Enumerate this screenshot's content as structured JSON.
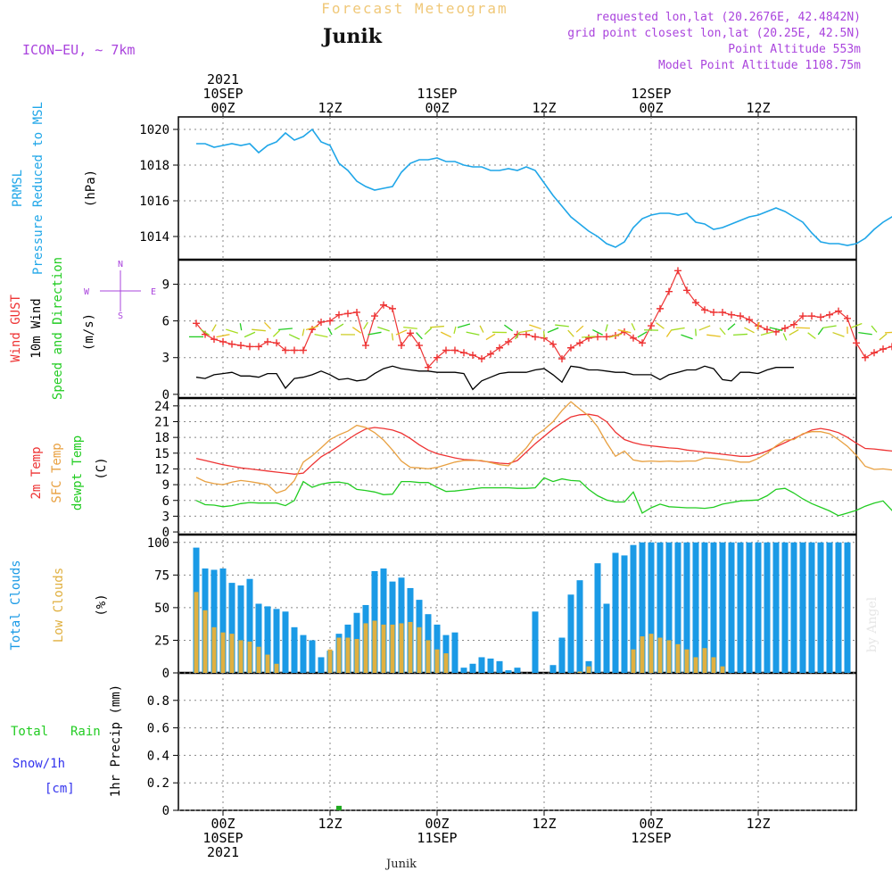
{
  "header": {
    "title": "Forecast Meteogram",
    "location": "Junik",
    "model": "ICON−EU,  ∼ 7km",
    "requested": "requested lon,lat (20.2676E, 42.4842N)",
    "gridpoint": "grid point closest lon,lat (20.25E, 42.5N)",
    "point_alt": "Point Altitude 553m",
    "model_alt": "Model Point Altitude 1108.75m",
    "watermark": "by Angel",
    "footer_location": "Junik"
  },
  "time_axis": {
    "top_labels": [
      {
        "h": 0,
        "lines": [
          "2021",
          "10SEP",
          "00Z"
        ]
      },
      {
        "h": 12,
        "lines": [
          "12Z"
        ]
      },
      {
        "h": 24,
        "lines": [
          "11SEP",
          "00Z"
        ]
      },
      {
        "h": 36,
        "lines": [
          "12Z"
        ]
      },
      {
        "h": 48,
        "lines": [
          "12SEP",
          "00Z"
        ]
      },
      {
        "h": 60,
        "lines": [
          "12Z"
        ]
      }
    ],
    "bottom_labels": [
      {
        "h": 0,
        "lines": [
          "00Z",
          "10SEP",
          "2021"
        ]
      },
      {
        "h": 12,
        "lines": [
          "12Z"
        ]
      },
      {
        "h": 24,
        "lines": [
          "00Z",
          "11SEP"
        ]
      },
      {
        "h": 36,
        "lines": [
          "12Z"
        ]
      },
      {
        "h": 48,
        "lines": [
          "00Z",
          "12SEP"
        ]
      },
      {
        "h": 60,
        "lines": [
          "12Z"
        ]
      }
    ]
  },
  "panel_labels": {
    "pressure": {
      "l1": "PRMSL",
      "l2": "Pressure Reduced to MSL",
      "unit": "(hPa)"
    },
    "wind": {
      "l1": "Wind GUST",
      "l2": "10m Wind",
      "l3": "Speed and Direction",
      "unit": "(m/s)",
      "rose_n": "N",
      "rose_s": "S",
      "rose_w": "W",
      "rose_e": "E"
    },
    "temp": {
      "l1": "2m Temp",
      "l2": "SFC Temp",
      "l3": "dewpt Temp",
      "unit": "(C)"
    },
    "clouds": {
      "l1": "Total Clouds",
      "l2": "Low Clouds",
      "unit": "(%)"
    },
    "precip": {
      "l1": "Total",
      "l1b": "Rain",
      "l2": "Snow/1h",
      "l3": "[cm]",
      "unit": "1hr Precip (mm)"
    }
  },
  "colors": {
    "pressure": "#1fa6e8",
    "gust": "#ee3333",
    "wind": "#000000",
    "temp2m": "#ee3333",
    "sfc": "#e8a040",
    "dewpt": "#22cc22",
    "total_clouds": "#1a9ae6",
    "low_clouds": "#e0b040",
    "rain": "#22aa22",
    "snow": "#3333ee",
    "title": "#f0c878",
    "meta": "#aa44dd"
  },
  "chart_data": [
    {
      "type": "line",
      "title": "PRMSL Pressure Reduced to MSL",
      "ylabel": "(hPa)",
      "ylim": [
        1012.7,
        1020.7
      ],
      "yticks": [
        1014,
        1016,
        1018,
        1020
      ],
      "x_hours_start": -3,
      "x_step_hours": 1,
      "series": [
        {
          "name": "PRMSL",
          "values": [
            1019.2,
            1019.2,
            1019.0,
            1019.1,
            1019.2,
            1019.1,
            1019.2,
            1018.7,
            1019.1,
            1019.3,
            1019.8,
            1019.4,
            1019.6,
            1020.0,
            1019.3,
            1019.1,
            1018.1,
            1017.7,
            1017.1,
            1016.8,
            1016.6,
            1016.7,
            1016.8,
            1017.6,
            1018.1,
            1018.3,
            1018.3,
            1018.4,
            1018.2,
            1018.2,
            1018.0,
            1017.9,
            1017.9,
            1017.7,
            1017.7,
            1017.8,
            1017.7,
            1017.9,
            1017.7,
            1017.0,
            1016.3,
            1015.7,
            1015.1,
            1014.7,
            1014.3,
            1014.0,
            1013.6,
            1013.4,
            1013.7,
            1014.5,
            1015.0,
            1015.2,
            1015.3,
            1015.3,
            1015.2,
            1015.3,
            1014.8,
            1014.7,
            1014.4,
            1014.5,
            1014.7,
            1014.9,
            1015.1,
            1015.2,
            1015.4,
            1015.6,
            1015.4,
            1015.1,
            1014.8,
            1014.2,
            1013.7,
            1013.6,
            1013.6,
            1013.5,
            1013.6,
            1013.9,
            1014.4,
            1014.8,
            1015.1,
            1015.3,
            1015.3,
            1015.2
          ]
        }
      ]
    },
    {
      "type": "line",
      "title": "Wind GUST / 10m Wind Speed and Direction",
      "ylabel": "(m/s)",
      "ylim": [
        -0.3,
        11
      ],
      "yticks": [
        0,
        3,
        6,
        9
      ],
      "x_hours_start": -3,
      "x_step_hours": 1,
      "series": [
        {
          "name": "Wind GUST",
          "values": [
            5.8,
            4.9,
            4.5,
            4.3,
            4.1,
            4.0,
            3.9,
            3.9,
            4.3,
            4.2,
            3.6,
            3.6,
            3.6,
            5.3,
            5.9,
            6.0,
            6.5,
            6.6,
            6.7,
            4.0,
            6.4,
            7.3,
            7.0,
            4.0,
            5.0,
            4.0,
            2.2,
            3.0,
            3.6,
            3.6,
            3.4,
            3.2,
            2.9,
            3.3,
            3.8,
            4.3,
            4.9,
            4.9,
            4.7,
            4.6,
            4.1,
            2.9,
            3.8,
            4.2,
            4.6,
            4.7,
            4.7,
            4.8,
            5.1,
            4.6,
            4.2,
            5.6,
            7.0,
            8.4,
            10.1,
            8.5,
            7.5,
            6.9,
            6.7,
            6.7,
            6.5,
            6.4,
            6.1,
            5.6,
            5.3,
            5.1,
            5.4,
            5.7,
            6.4,
            6.4,
            6.3,
            6.5,
            6.8,
            6.2,
            4.2,
            3.0,
            3.4,
            3.7,
            3.9,
            4.6,
            5.3,
            5.3,
            5.0,
            5.7
          ]
        },
        {
          "name": "10m Wind",
          "values": [
            1.4,
            1.3,
            1.6,
            1.7,
            1.8,
            1.5,
            1.5,
            1.4,
            1.7,
            1.7,
            0.5,
            1.3,
            1.4,
            1.6,
            1.9,
            1.6,
            1.2,
            1.3,
            1.1,
            1.2,
            1.7,
            2.1,
            2.3,
            2.1,
            2.0,
            1.9,
            1.9,
            1.8,
            1.8,
            1.8,
            1.7,
            0.4,
            1.1,
            1.4,
            1.7,
            1.8,
            1.8,
            1.8,
            2.0,
            2.1,
            1.6,
            1.0,
            2.3,
            2.2,
            2.0,
            2.0,
            1.9,
            1.8,
            1.8,
            1.6,
            1.6,
            1.6,
            1.2,
            1.6,
            1.8,
            2.0,
            2.0,
            2.3,
            2.1,
            1.2,
            1.1,
            1.8,
            1.8,
            1.7,
            2.0,
            2.2,
            2.2,
            2.2
          ]
        }
      ]
    },
    {
      "type": "line",
      "title": "2m Temp / SFC Temp / dewpt Temp",
      "ylabel": "(C)",
      "ylim": [
        -0.5,
        25.5
      ],
      "yticks": [
        0,
        3,
        6,
        9,
        12,
        15,
        18,
        21,
        24
      ],
      "x_hours_start": -3,
      "x_step_hours": 1,
      "series": [
        {
          "name": "2m Temp",
          "values": [
            14.0,
            13.6,
            13.2,
            12.8,
            12.5,
            12.2,
            12.0,
            11.8,
            11.6,
            11.4,
            11.2,
            11.0,
            11.2,
            12.8,
            14.3,
            15.3,
            16.4,
            17.6,
            18.7,
            19.6,
            19.9,
            19.7,
            19.4,
            18.8,
            17.8,
            16.6,
            15.6,
            14.9,
            14.5,
            14.1,
            13.8,
            13.7,
            13.5,
            13.3,
            13.1,
            13.0,
            13.6,
            15.2,
            16.8,
            18.2,
            19.6,
            20.8,
            21.9,
            22.3,
            22.4,
            22.1,
            21.0,
            19.0,
            17.6,
            17.0,
            16.6,
            16.4,
            16.2,
            16.0,
            15.9,
            15.6,
            15.4,
            15.2,
            15.0,
            14.8,
            14.6,
            14.4,
            14.4,
            14.8,
            15.4,
            16.2,
            17.0,
            17.8,
            18.6,
            19.4,
            19.7,
            19.4,
            18.9,
            18.0,
            16.9,
            15.9,
            15.8,
            15.6,
            15.4,
            15.2,
            15.0,
            14.8
          ]
        },
        {
          "name": "SFC Temp",
          "values": [
            10.4,
            9.6,
            9.2,
            9.0,
            9.5,
            9.8,
            9.6,
            9.3,
            9.0,
            7.4,
            8.0,
            9.8,
            13.3,
            14.5,
            16.0,
            17.6,
            18.5,
            19.2,
            20.3,
            19.9,
            18.9,
            17.5,
            15.6,
            13.5,
            12.3,
            12.2,
            12.0,
            12.3,
            12.8,
            13.3,
            13.6,
            13.6,
            13.6,
            13.2,
            12.8,
            12.6,
            14.3,
            16.0,
            18.3,
            19.5,
            21.0,
            23.1,
            24.8,
            23.4,
            22.1,
            20.0,
            17.0,
            14.4,
            15.4,
            13.7,
            13.4,
            13.5,
            13.4,
            13.5,
            13.4,
            13.5,
            13.5,
            14.1,
            14.0,
            13.8,
            13.6,
            13.3,
            13.3,
            14.0,
            15.0,
            16.4,
            17.5,
            17.6,
            18.7,
            19.1,
            19.1,
            18.7,
            17.6,
            16.3,
            14.6,
            12.5,
            11.9,
            12.0,
            11.8,
            12.7,
            13.7,
            14.2
          ]
        },
        {
          "name": "dewpt Temp",
          "values": [
            6.0,
            5.2,
            5.1,
            4.8,
            5.0,
            5.4,
            5.6,
            5.5,
            5.5,
            5.5,
            5.0,
            6.0,
            9.6,
            8.5,
            9.1,
            9.4,
            9.5,
            9.2,
            8.1,
            7.9,
            7.6,
            7.1,
            7.2,
            9.6,
            9.6,
            9.4,
            9.4,
            8.5,
            7.7,
            7.8,
            8.0,
            8.2,
            8.4,
            8.4,
            8.4,
            8.4,
            8.3,
            8.3,
            8.4,
            10.3,
            9.6,
            10.1,
            9.8,
            9.7,
            8.1,
            6.9,
            6.1,
            5.7,
            5.7,
            7.6,
            3.6,
            4.6,
            5.3,
            4.8,
            4.7,
            4.6,
            4.6,
            4.5,
            4.7,
            5.3,
            5.6,
            5.9,
            6.0,
            6.1,
            6.9,
            8.1,
            8.3,
            7.4,
            6.3,
            5.4,
            4.7,
            4.0,
            3.1,
            3.6,
            4.1,
            4.9,
            5.5,
            5.9,
            4.1,
            1.6,
            1.0,
            1.3
          ]
        }
      ]
    },
    {
      "type": "bar",
      "title": "Total Clouds / Low Clouds",
      "ylabel": "(%)",
      "ylim": [
        0,
        106
      ],
      "yticks": [
        0,
        25,
        50,
        75,
        100
      ],
      "x_hours_start": -3,
      "x_step_hours": 1,
      "series": [
        {
          "name": "Total Clouds",
          "values": [
            96,
            80,
            79,
            80,
            69,
            67,
            72,
            53,
            51,
            49,
            47,
            35,
            29,
            25,
            12,
            17,
            30,
            37,
            46,
            52,
            78,
            80,
            70,
            73,
            65,
            56,
            45,
            37,
            29,
            31,
            4,
            7,
            12,
            11,
            9,
            2,
            4,
            0,
            47,
            0,
            6,
            27,
            60,
            71,
            9,
            84,
            53,
            92,
            90,
            98,
            100,
            100,
            100,
            100,
            100,
            100,
            100,
            100,
            100,
            100,
            100,
            100,
            100,
            100,
            100,
            100,
            100,
            100,
            100,
            100,
            100,
            100,
            100,
            100,
            100,
            100,
            100,
            100,
            100,
            100,
            100,
            100
          ]
        },
        {
          "name": "Low Clouds",
          "values": [
            62,
            48,
            35,
            31,
            30,
            25,
            24,
            20,
            14,
            7,
            0,
            0,
            0,
            0,
            0,
            18,
            27,
            27,
            26,
            38,
            40,
            37,
            37,
            38,
            39,
            35,
            25,
            18,
            15,
            0,
            0,
            0,
            0,
            0,
            0,
            0,
            0,
            0,
            0,
            0,
            0,
            0,
            0,
            1,
            5,
            0,
            0,
            0,
            0,
            18,
            28,
            30,
            27,
            25,
            22,
            18,
            12,
            19,
            12,
            5,
            0,
            0,
            0,
            0,
            0,
            0,
            0,
            0,
            0,
            0,
            0,
            0,
            0,
            0,
            0,
            0,
            0,
            0,
            0,
            0,
            0,
            0
          ]
        }
      ]
    },
    {
      "type": "bar",
      "title": "1hr Precip",
      "ylabel": "1hr Precip (mm)",
      "ylim": [
        0,
        1.0
      ],
      "yticks": [
        0,
        0.2,
        0.4,
        0.6,
        0.8
      ],
      "series": [
        {
          "name": "Total Rain",
          "x_hours": [
            13
          ],
          "values": [
            0.02
          ]
        },
        {
          "name": "Snow/1h",
          "x_hours": [],
          "values": []
        }
      ]
    }
  ]
}
